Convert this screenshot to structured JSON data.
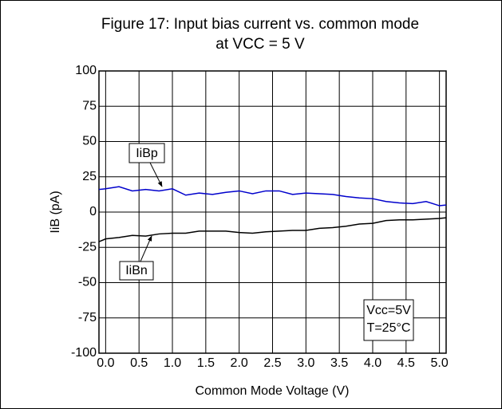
{
  "chart_data": {
    "type": "line",
    "title": "Figure 17: Input bias current vs. common mode",
    "subtitle": "at VCC = 5 V",
    "x_label": "Common Mode Voltage (V)",
    "y_label": "IiB (pA)",
    "annotations": [
      "Vcc=5V",
      "T=25°C"
    ],
    "x": [
      -0.1,
      0.0,
      0.2,
      0.4,
      0.6,
      0.8,
      1.0,
      1.2,
      1.4,
      1.6,
      1.8,
      2.0,
      2.2,
      2.4,
      2.6,
      2.8,
      3.0,
      3.2,
      3.4,
      3.6,
      3.8,
      4.0,
      4.2,
      4.4,
      4.6,
      4.8,
      5.0,
      5.1
    ],
    "series": [
      {
        "name": "IiBp",
        "color": "#0000cc",
        "values": [
          16,
          16.5,
          18,
          15,
          16,
          15,
          16.5,
          12,
          13.5,
          12.5,
          14,
          15,
          13,
          15,
          15,
          12.5,
          13.5,
          13,
          12.5,
          11,
          10,
          9.5,
          7.5,
          6.5,
          6,
          7.5,
          4.5,
          5
        ]
      },
      {
        "name": "IiBn",
        "color": "#000000",
        "values": [
          -21,
          -19,
          -18,
          -16.5,
          -17,
          -15.5,
          -15,
          -15,
          -13.5,
          -13.5,
          -13.5,
          -14.5,
          -15,
          -14,
          -13.5,
          -13,
          -13,
          -11.5,
          -11,
          -10,
          -8.5,
          -8,
          -6,
          -5.5,
          -5.5,
          -5,
          -4.5,
          -4
        ]
      }
    ],
    "xlim": [
      -0.1,
      5.1
    ],
    "xticks": [
      {
        "value": 0,
        "label": "0.0"
      },
      0.5,
      {
        "value": 1,
        "label": "1.0"
      },
      1.5,
      {
        "value": 2,
        "label": "2.0"
      },
      2.5,
      {
        "value": 3,
        "label": "3.0"
      },
      3.5,
      {
        "value": 4,
        "label": "4.0"
      },
      4.5,
      {
        "value": 5,
        "label": "5.0"
      }
    ],
    "ylim": [
      -100,
      100
    ],
    "yticks": [
      -100,
      -75,
      -50,
      -25,
      0,
      25,
      50,
      75,
      100
    ],
    "grid": true
  }
}
